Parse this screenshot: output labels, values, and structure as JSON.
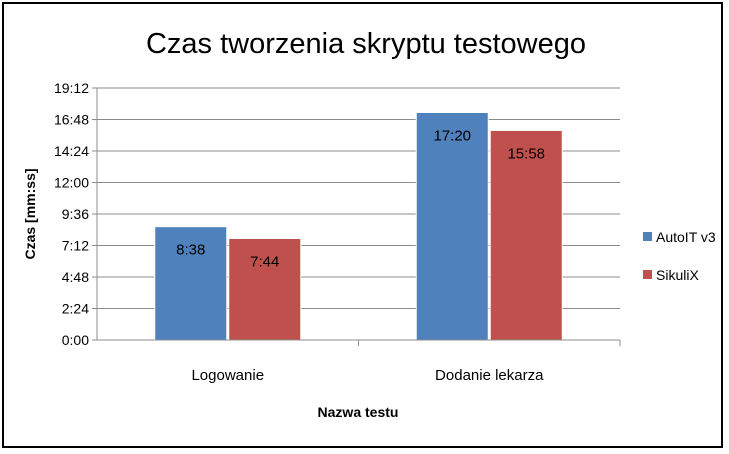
{
  "chart_data": {
    "type": "bar",
    "title": "Czas tworzenia skryptu testowego",
    "xlabel": "Nazwa testu",
    "ylabel": "Czas [mm:ss]",
    "categories": [
      "Logowanie",
      "Dodanie lekarza"
    ],
    "series": [
      {
        "name": "AutoIT v3",
        "values": [
          518,
          1040
        ],
        "labels": [
          "8:38",
          "17:20"
        ],
        "color": "#4F81BD"
      },
      {
        "name": "SikuliX",
        "values": [
          464,
          958
        ],
        "labels": [
          "7:44",
          "15:58"
        ],
        "color": "#C0504D"
      }
    ],
    "yticks": [
      0,
      144,
      288,
      432,
      576,
      720,
      864,
      1008,
      1152
    ],
    "ytick_labels": [
      "0:00",
      "2:24",
      "4:48",
      "7:12",
      "9:36",
      "12:00",
      "14:24",
      "16:48",
      "19:12"
    ],
    "ylim": [
      0,
      1152
    ],
    "grid": true,
    "legend_position": "right"
  }
}
